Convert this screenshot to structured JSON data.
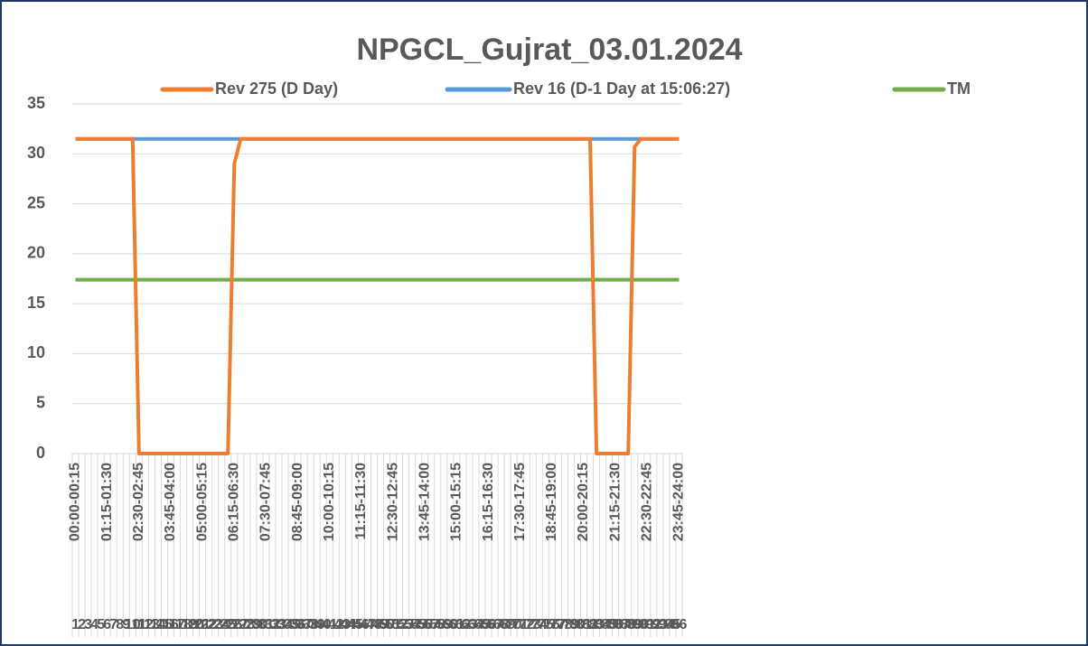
{
  "chart_data": {
    "type": "line",
    "title": "NPGCL_Gujrat_03.01.2024",
    "categories": [
      "00:00-00:15",
      null,
      null,
      null,
      null,
      "01:15-01:30",
      null,
      null,
      null,
      null,
      "02:30-02:45",
      null,
      null,
      null,
      null,
      "03:45-04:00",
      null,
      null,
      null,
      null,
      "05:00-05:15",
      null,
      null,
      null,
      null,
      "06:15-06:30",
      null,
      null,
      null,
      null,
      "07:30-07:45",
      null,
      null,
      null,
      null,
      "08:45-09:00",
      null,
      null,
      null,
      null,
      "10:00-10:15",
      null,
      null,
      null,
      null,
      "11:15-11:30",
      null,
      null,
      null,
      null,
      "12:30-12:45",
      null,
      null,
      null,
      null,
      "13:45-14:00",
      null,
      null,
      null,
      null,
      "15:00-15:15",
      null,
      null,
      null,
      null,
      "16:15-16:30",
      null,
      null,
      null,
      null,
      "17:30-17:45",
      null,
      null,
      null,
      null,
      "18:45-19:00",
      null,
      null,
      null,
      null,
      "20:00-20:15",
      null,
      null,
      null,
      null,
      "21:15-21:30",
      null,
      null,
      null,
      null,
      "22:30-22:45",
      null,
      null,
      null,
      null,
      "23:45-24:00"
    ],
    "block_numbers": [
      1,
      2,
      3,
      4,
      5,
      6,
      7,
      8,
      9,
      10,
      11,
      12,
      13,
      14,
      15,
      16,
      17,
      18,
      19,
      20,
      21,
      22,
      23,
      24,
      25,
      26,
      27,
      28,
      29,
      30,
      31,
      32,
      33,
      34,
      35,
      36,
      37,
      38,
      39,
      40,
      41,
      42,
      43,
      44,
      45,
      46,
      47,
      48,
      49,
      50,
      51,
      52,
      53,
      54,
      55,
      56,
      57,
      58,
      59,
      60,
      61,
      62,
      63,
      64,
      65,
      66,
      67,
      68,
      69,
      70,
      71,
      72,
      73,
      74,
      75,
      76,
      77,
      78,
      79,
      80,
      81,
      82,
      83,
      84,
      85,
      86,
      87,
      88,
      89,
      90,
      91,
      92,
      93,
      94,
      95,
      96
    ],
    "series": [
      {
        "name": "Rev 275 (D Day)",
        "color": "#ed7d31",
        "values": [
          31.5,
          31.5,
          31.5,
          31.5,
          31.5,
          31.5,
          31.5,
          31.5,
          31.5,
          31.5,
          0,
          0,
          0,
          0,
          0,
          0,
          0,
          0,
          0,
          0,
          0,
          0,
          0,
          0,
          0,
          29,
          31.5,
          31.5,
          31.5,
          31.5,
          31.5,
          31.5,
          31.5,
          31.5,
          31.5,
          31.5,
          31.5,
          31.5,
          31.5,
          31.5,
          31.5,
          31.5,
          31.5,
          31.5,
          31.5,
          31.5,
          31.5,
          31.5,
          31.5,
          31.5,
          31.5,
          31.5,
          31.5,
          31.5,
          31.5,
          31.5,
          31.5,
          31.5,
          31.5,
          31.5,
          31.5,
          31.5,
          31.5,
          31.5,
          31.5,
          31.5,
          31.5,
          31.5,
          31.5,
          31.5,
          31.5,
          31.5,
          31.5,
          31.5,
          31.5,
          31.5,
          31.5,
          31.5,
          31.5,
          31.5,
          31.5,
          31.5,
          0,
          0,
          0,
          0,
          0,
          0,
          30.7,
          31.5,
          31.5,
          31.5,
          31.5,
          31.5,
          31.5,
          31.5
        ]
      },
      {
        "name": "Rev 16 (D-1 Day at 15:06:27)",
        "color": "#5b9bd5",
        "values": [
          31.5,
          31.5,
          31.5,
          31.5,
          31.5,
          31.5,
          31.5,
          31.5,
          31.5,
          31.5,
          31.5,
          31.5,
          31.5,
          31.5,
          31.5,
          31.5,
          31.5,
          31.5,
          31.5,
          31.5,
          31.5,
          31.5,
          31.5,
          31.5,
          31.5,
          31.5,
          31.5,
          31.5,
          31.5,
          31.5,
          31.5,
          31.5,
          31.5,
          31.5,
          31.5,
          31.5,
          31.5,
          31.5,
          31.5,
          31.5,
          31.5,
          31.5,
          31.5,
          31.5,
          31.5,
          31.5,
          31.5,
          31.5,
          31.5,
          31.5,
          31.5,
          31.5,
          31.5,
          31.5,
          31.5,
          31.5,
          31.5,
          31.5,
          31.5,
          31.5,
          31.5,
          31.5,
          31.5,
          31.5,
          31.5,
          31.5,
          31.5,
          31.5,
          31.5,
          31.5,
          31.5,
          31.5,
          31.5,
          31.5,
          31.5,
          31.5,
          31.5,
          31.5,
          31.5,
          31.5,
          31.5,
          31.5,
          31.5,
          31.5,
          31.5,
          31.5,
          31.5,
          31.5,
          31.5,
          31.5,
          31.5,
          31.5,
          31.5,
          31.5,
          31.5,
          31.5
        ]
      },
      {
        "name": "TM",
        "color": "#70ad47",
        "values": [
          17.4,
          17.4,
          17.4,
          17.4,
          17.4,
          17.4,
          17.4,
          17.4,
          17.4,
          17.4,
          17.4,
          17.4,
          17.4,
          17.4,
          17.4,
          17.4,
          17.4,
          17.4,
          17.4,
          17.4,
          17.4,
          17.4,
          17.4,
          17.4,
          17.4,
          17.4,
          17.4,
          17.4,
          17.4,
          17.4,
          17.4,
          17.4,
          17.4,
          17.4,
          17.4,
          17.4,
          17.4,
          17.4,
          17.4,
          17.4,
          17.4,
          17.4,
          17.4,
          17.4,
          17.4,
          17.4,
          17.4,
          17.4,
          17.4,
          17.4,
          17.4,
          17.4,
          17.4,
          17.4,
          17.4,
          17.4,
          17.4,
          17.4,
          17.4,
          17.4,
          17.4,
          17.4,
          17.4,
          17.4,
          17.4,
          17.4,
          17.4,
          17.4,
          17.4,
          17.4,
          17.4,
          17.4,
          17.4,
          17.4,
          17.4,
          17.4,
          17.4,
          17.4,
          17.4,
          17.4,
          17.4,
          17.4,
          17.4,
          17.4,
          17.4,
          17.4,
          17.4,
          17.4,
          17.4,
          17.4,
          17.4,
          17.4,
          17.4,
          17.4,
          17.4,
          17.4
        ]
      }
    ],
    "ylim": [
      0,
      35
    ],
    "yticks": [
      0,
      5,
      10,
      15,
      20,
      25,
      30,
      35
    ],
    "grid": true,
    "legend": "top"
  }
}
